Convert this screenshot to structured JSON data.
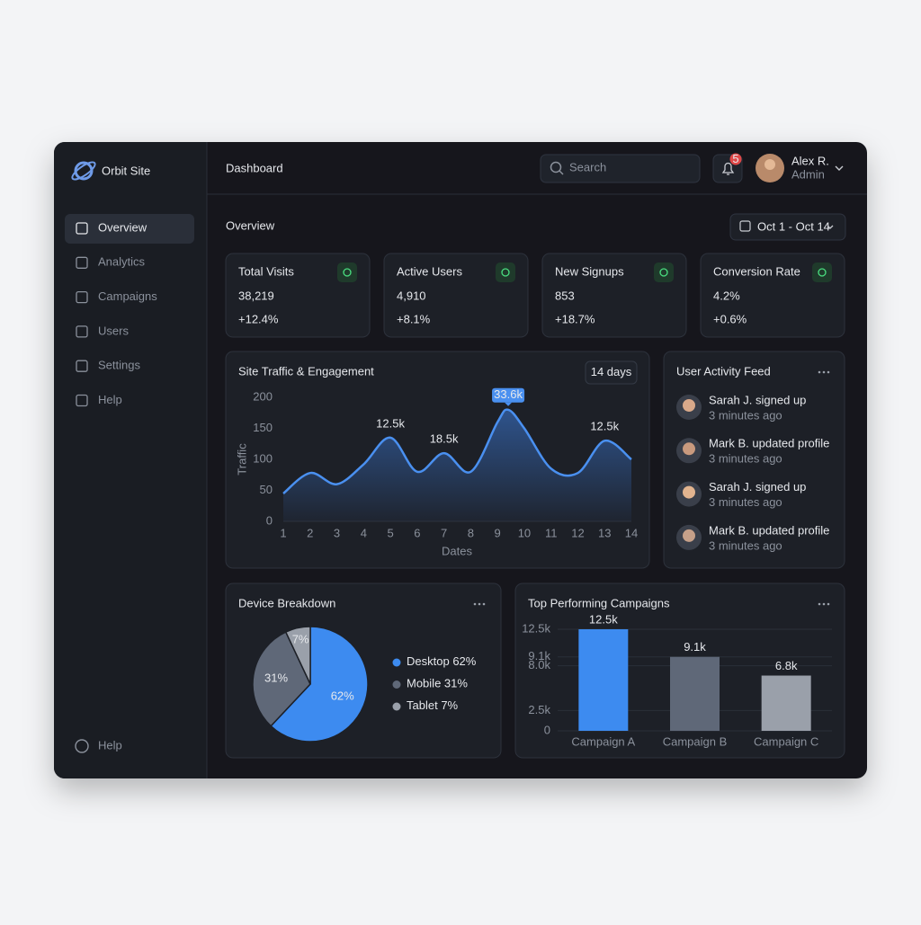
{
  "sidebar": {
    "brand": "Orbit Site",
    "nav": [
      "Overview",
      "Analytics",
      "Campaigns",
      "Users",
      "Settings",
      "Help"
    ],
    "footer": "Help"
  },
  "header": {
    "title": "Dashboard",
    "search": "Search",
    "notifications": "5",
    "user_name": "Alex R.",
    "user_role": "Admin"
  },
  "overview": {
    "title": "Overview",
    "date_range": "Oct 1 - Oct 14"
  },
  "stats": [
    {
      "label": "Total Visits",
      "value": "38,219",
      "change": "+12.4%"
    },
    {
      "label": "Active Users",
      "value": "4,910",
      "change": "+8.1%"
    },
    {
      "label": "New Signups",
      "value": "853",
      "change": "+18.7%"
    },
    {
      "label": "Conversion Rate",
      "value": "4.2%",
      "change": "+0.6%"
    }
  ],
  "activity_feed": {
    "title": "User Activity Feed",
    "items": [
      {
        "text": "Sarah J. signed up",
        "time": "3 minutes ago"
      },
      {
        "text": "Mark B. updated profile",
        "time": "3 minutes ago"
      },
      {
        "text": "Sarah J. signed up",
        "time": "3 minutes ago"
      },
      {
        "text": "Mark B. updated profile",
        "time": "3 minutes ago"
      }
    ]
  },
  "chart_data": [
    {
      "type": "line",
      "title": "Site Traffic & Engagement",
      "range_button": "14 days",
      "x_label": "Dates",
      "y_label": "Traffic",
      "color": "#4a90f0",
      "area": true,
      "grid": false,
      "x": [
        1,
        2,
        3,
        4,
        5,
        6,
        7,
        8,
        9,
        9.4,
        10,
        11,
        12,
        13,
        14
      ],
      "values": [
        45,
        78,
        60,
        92,
        135,
        80,
        110,
        80,
        160,
        180,
        150,
        85,
        78,
        130,
        100
      ],
      "xlim": [
        1,
        14
      ],
      "xticks": [
        1,
        2,
        3,
        4,
        5,
        6,
        7,
        8,
        9,
        10,
        11,
        12,
        13,
        14
      ],
      "ylim": [
        0,
        200
      ],
      "yticks": [
        0,
        50,
        100,
        150,
        200
      ],
      "annotations": [
        {
          "text": "12.5k",
          "x": 5,
          "y": 135
        },
        {
          "text": "18.5k",
          "x": 7,
          "y": 110
        },
        {
          "text": "33.6k",
          "x": 9.4,
          "y": 180
        },
        {
          "text": "12.5k",
          "x": 13,
          "y": 130
        }
      ]
    },
    {
      "type": "pie",
      "title": "Device Breakdown",
      "categories": [
        "Desktop",
        "Mobile",
        "Tablet"
      ],
      "values": [
        62,
        31,
        7
      ],
      "value_labels": [
        "62%",
        "31%",
        "7%"
      ],
      "colors": [
        "#3d8bf0",
        "#5f6878",
        "#9aa0aa"
      ]
    },
    {
      "type": "bar",
      "title": "Top Performing Campaigns",
      "categories": [
        "Campaign A",
        "Campaign B",
        "Campaign C"
      ],
      "values": [
        12500,
        9100,
        6800
      ],
      "value_labels": [
        "12.5k",
        "9.1k",
        "6.8k"
      ],
      "colors": [
        "#3d8bf0",
        "#5f6878",
        "#9aa0aa"
      ],
      "ylim": [
        0,
        12500
      ],
      "yticks": [
        0,
        {
          "value": 2500,
          "label": "2.5k"
        },
        {
          "value": 8000,
          "label": "8.0k"
        },
        {
          "value": 9100,
          "label": "9.1k"
        },
        {
          "value": 12500,
          "label": "12.5k"
        }
      ],
      "grid": true
    }
  ]
}
